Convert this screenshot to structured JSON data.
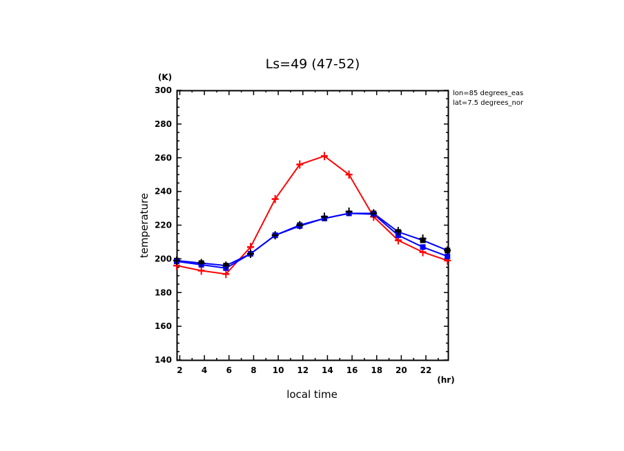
{
  "chart_data": {
    "type": "line",
    "title": "Ls=49 (47-52)",
    "xlabel": "local time",
    "xunit": "(hr)",
    "ylabel": "temperature",
    "yunit": "(K)",
    "xlim": [
      1.75,
      23.85
    ],
    "ylim": [
      140,
      300
    ],
    "xticks": [
      2,
      4,
      6,
      8,
      10,
      12,
      14,
      16,
      18,
      20,
      22
    ],
    "yticks": [
      140,
      160,
      180,
      200,
      220,
      240,
      260,
      280,
      300
    ],
    "grid": false,
    "annotations": [
      "lon=85 degrees_eas",
      "lat=7.5 degrees_nor"
    ],
    "x": [
      1.75,
      3.75,
      5.75,
      7.75,
      9.75,
      11.75,
      13.75,
      15.75,
      17.75,
      19.75,
      21.75,
      23.75
    ],
    "series": [
      {
        "name": "red",
        "color": "#ff0000",
        "marker": "plus",
        "values": [
          196,
          193,
          191,
          207,
          235.5,
          256,
          261,
          250,
          225,
          211,
          204,
          199
        ]
      },
      {
        "name": "blue-1",
        "color": "#0000ff",
        "marker": "square",
        "values": [
          199,
          197.5,
          196,
          203,
          214,
          220,
          224,
          227,
          227,
          216,
          211,
          205
        ]
      },
      {
        "name": "blue-2",
        "color": "#0000ff",
        "marker": "square",
        "values": [
          198.5,
          196.5,
          194.5,
          203,
          214,
          219.5,
          224,
          227,
          226.5,
          214,
          207,
          201.5
        ]
      },
      {
        "name": "black-obs",
        "color": "#000000",
        "marker": "plus",
        "values": [
          199,
          197.5,
          196,
          203,
          214,
          220,
          225,
          228,
          227,
          216.5,
          212,
          205
        ]
      }
    ]
  }
}
